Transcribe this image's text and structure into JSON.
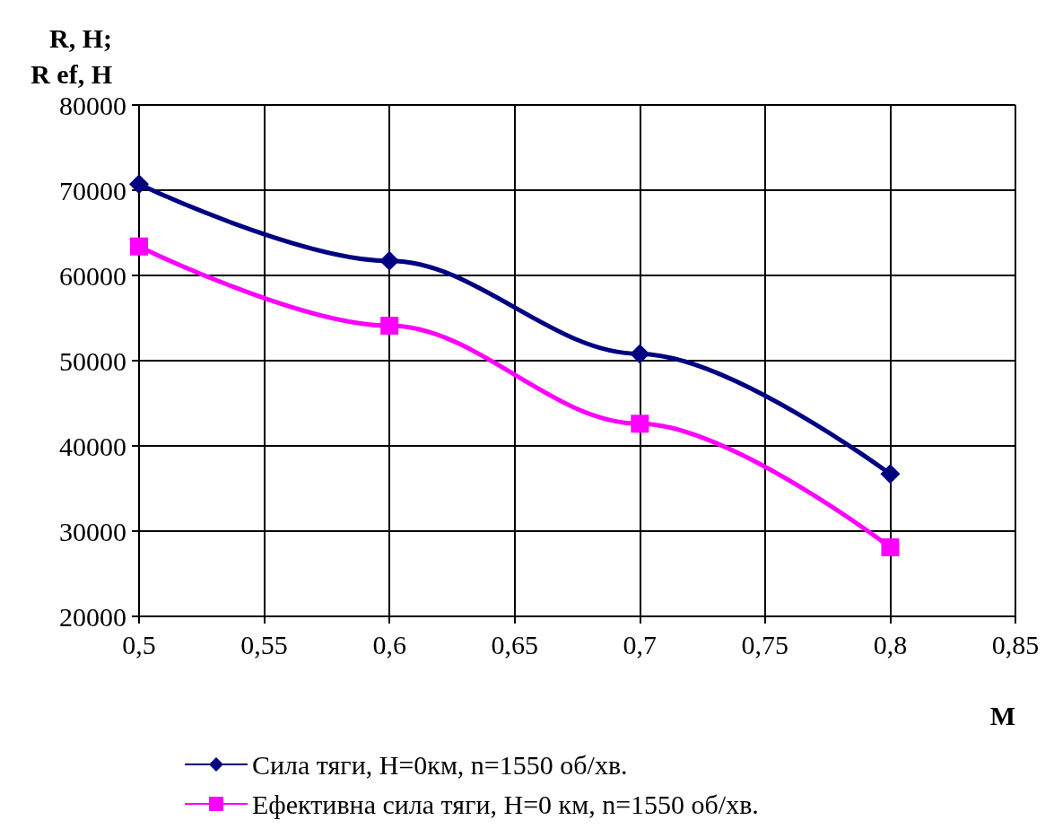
{
  "chart_data": {
    "type": "line",
    "xlabel": "M",
    "ylabel": "R, H;\nR ef, H",
    "series": [
      {
        "name": "Сила тяги, H=0км, n=1550 об/хв.",
        "color": "#000080",
        "marker": "diamond",
        "x": [
          0.5,
          0.6,
          0.7,
          0.8
        ],
        "values": [
          70700,
          61700,
          50800,
          36700
        ]
      },
      {
        "name": "Ефективна сила тяги, H=0 км, n=1550 об/хв.",
        "color": "#ff00ff",
        "marker": "square",
        "x": [
          0.5,
          0.6,
          0.7,
          0.8
        ],
        "values": [
          63400,
          54100,
          42600,
          28100
        ]
      }
    ],
    "xlim": [
      0.5,
      0.85
    ],
    "xticks": [
      {
        "value": 0.5,
        "label": "0,5"
      },
      {
        "value": 0.55,
        "label": "0,55"
      },
      {
        "value": 0.6,
        "label": "0,6"
      },
      {
        "value": 0.65,
        "label": "0,65"
      },
      {
        "value": 0.7,
        "label": "0,7"
      },
      {
        "value": 0.75,
        "label": "0,75"
      },
      {
        "value": 0.8,
        "label": "0,8"
      },
      {
        "value": 0.85,
        "label": "0,85"
      }
    ],
    "ylim": [
      20000,
      80000
    ],
    "yticks": [
      20000,
      30000,
      40000,
      50000,
      60000,
      70000,
      80000
    ],
    "grid": true,
    "legend": "bottom",
    "line_style": "solid"
  }
}
